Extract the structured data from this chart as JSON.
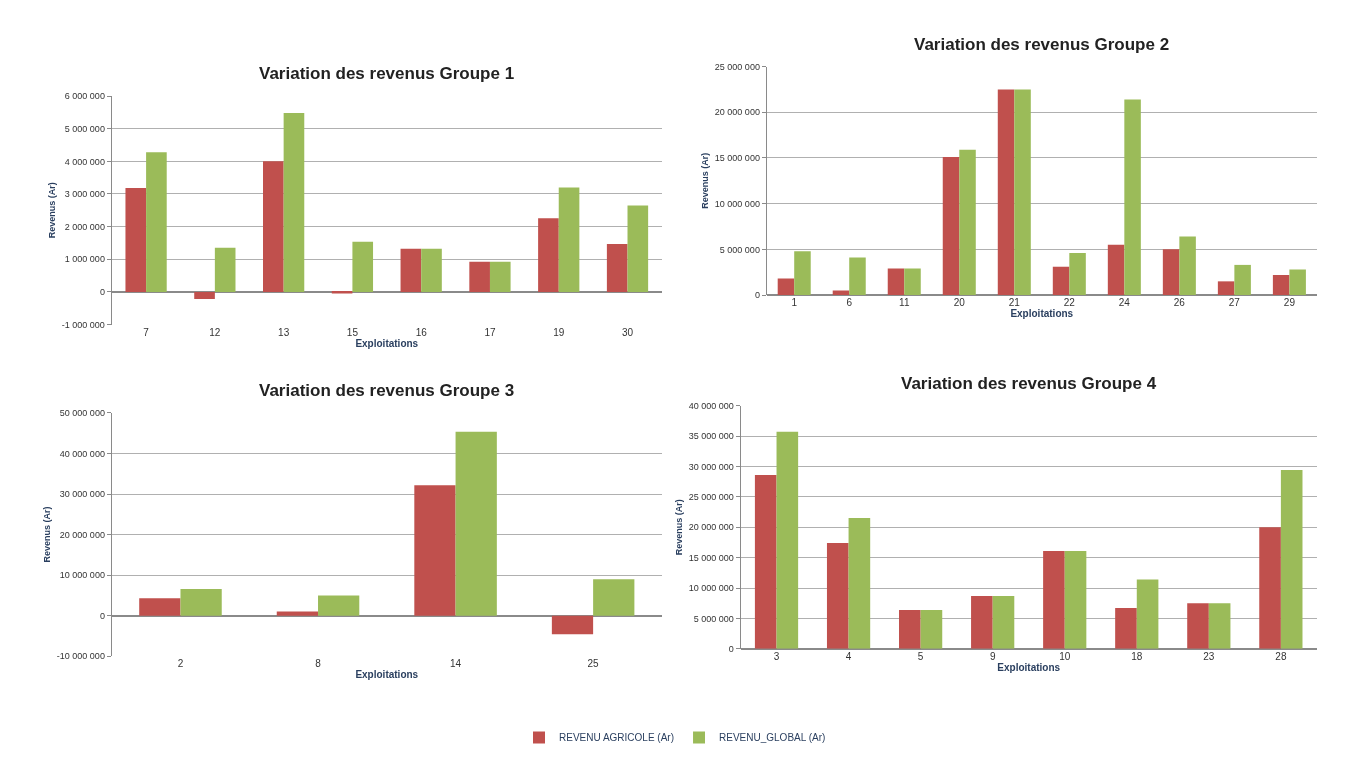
{
  "chart_data": [
    {
      "type": "bar",
      "title": "Variation des revenus Groupe 1",
      "xlabel": "Exploitations",
      "ylabel": "Revenus (Ar)",
      "categories": [
        "7",
        "12",
        "13",
        "15",
        "16",
        "17",
        "19",
        "30"
      ],
      "series": [
        {
          "name": "REVENU AGRICOLE (Ar)",
          "color": "#c0504d",
          "values": [
            3180000,
            -220000,
            4000000,
            -50000,
            1320000,
            920000,
            2260000,
            1470000
          ]
        },
        {
          "name": "REVENU_GLOBAL (Ar)",
          "color": "#9bbb59",
          "values": [
            4280000,
            1350000,
            5480000,
            1540000,
            1320000,
            920000,
            3200000,
            2650000
          ]
        }
      ],
      "ylim": [
        -1000000,
        6000000
      ],
      "yticks": [
        {
          "value": -1000000,
          "label": "-1 000 000"
        },
        {
          "value": 0,
          "label": "0"
        },
        {
          "value": 1000000,
          "label": "1 000 000"
        },
        {
          "value": 2000000,
          "label": "2 000 000"
        },
        {
          "value": 3000000,
          "label": "3 000 000"
        },
        {
          "value": 4000000,
          "label": "4 000 000"
        },
        {
          "value": 5000000,
          "label": "5 000 000"
        },
        {
          "value": 6000000,
          "label": "6 000 000"
        }
      ],
      "grid": "y",
      "legend": "bottom"
    },
    {
      "type": "bar",
      "title": "Variation des revenus Groupe 2",
      "xlabel": "Exploitations",
      "ylabel": "Revenus (Ar)",
      "categories": [
        "1",
        "6",
        "11",
        "20",
        "21",
        "22",
        "24",
        "26",
        "27",
        "29"
      ],
      "series": [
        {
          "name": "REVENU AGRICOLE (Ar)",
          "color": "#c0504d",
          "values": [
            1800000,
            500000,
            2900000,
            15100000,
            22500000,
            3100000,
            5500000,
            5000000,
            1500000,
            2200000
          ]
        },
        {
          "name": "REVENU_GLOBAL (Ar)",
          "color": "#9bbb59",
          "values": [
            4800000,
            4100000,
            2900000,
            15900000,
            22500000,
            4600000,
            21400000,
            6400000,
            3300000,
            2800000
          ]
        }
      ],
      "ylim": [
        0,
        25000000
      ],
      "yticks": [
        {
          "value": 0,
          "label": "0"
        },
        {
          "value": 5000000,
          "label": "5 000 000"
        },
        {
          "value": 10000000,
          "label": "10 000 000"
        },
        {
          "value": 15000000,
          "label": "15 000 000"
        },
        {
          "value": 20000000,
          "label": "20 000 000"
        },
        {
          "value": 25000000,
          "label": "25 000 000"
        }
      ],
      "grid": "y",
      "legend": "bottom"
    },
    {
      "type": "bar",
      "title": "Variation des revenus Groupe 3",
      "xlabel": "Exploitations",
      "ylabel": "Revenus (Ar)",
      "categories": [
        "2",
        "8",
        "14",
        "25"
      ],
      "series": [
        {
          "name": "REVENU AGRICOLE (Ar)",
          "color": "#c0504d",
          "values": [
            4300000,
            1000000,
            32200000,
            -4600000
          ]
        },
        {
          "name": "REVENU_GLOBAL (Ar)",
          "color": "#9bbb59",
          "values": [
            6600000,
            5000000,
            45400000,
            9000000
          ]
        }
      ],
      "ylim": [
        -10000000,
        50000000
      ],
      "yticks": [
        {
          "value": -10000000,
          "label": "-10 000 000"
        },
        {
          "value": 0,
          "label": "0"
        },
        {
          "value": 10000000,
          "label": "10 000 000"
        },
        {
          "value": 20000000,
          "label": "20 000 000"
        },
        {
          "value": 30000000,
          "label": "30 000 000"
        },
        {
          "value": 40000000,
          "label": "40 000 000"
        },
        {
          "value": 50000000,
          "label": "50 000 000"
        }
      ],
      "grid": "y",
      "legend": "bottom"
    },
    {
      "type": "bar",
      "title": "Variation des revenus Groupe 4",
      "xlabel": "Exploitations",
      "ylabel": "Revenus (Ar)",
      "categories": [
        "3",
        "4",
        "5",
        "9",
        "10",
        "18",
        "23",
        "28"
      ],
      "series": [
        {
          "name": "REVENU AGRICOLE (Ar)",
          "color": "#c0504d",
          "values": [
            28600000,
            17400000,
            6400000,
            8700000,
            16100000,
            6700000,
            7500000,
            20000000
          ]
        },
        {
          "name": "REVENU_GLOBAL (Ar)",
          "color": "#9bbb59",
          "values": [
            35700000,
            21500000,
            6400000,
            8700000,
            16100000,
            11400000,
            7500000,
            29400000
          ]
        }
      ],
      "ylim": [
        0,
        40000000
      ],
      "yticks": [
        {
          "value": 0,
          "label": "0"
        },
        {
          "value": 5000000,
          "label": "5 000 000"
        },
        {
          "value": 10000000,
          "label": "10 000 000"
        },
        {
          "value": 15000000,
          "label": "15 000 000"
        },
        {
          "value": 20000000,
          "label": "20 000 000"
        },
        {
          "value": 25000000,
          "label": "25 000 000"
        },
        {
          "value": 30000000,
          "label": "30 000 000"
        },
        {
          "value": 35000000,
          "label": "35 000 000"
        },
        {
          "value": 40000000,
          "label": "40 000 000"
        }
      ],
      "grid": "y",
      "legend": "bottom"
    }
  ]
}
